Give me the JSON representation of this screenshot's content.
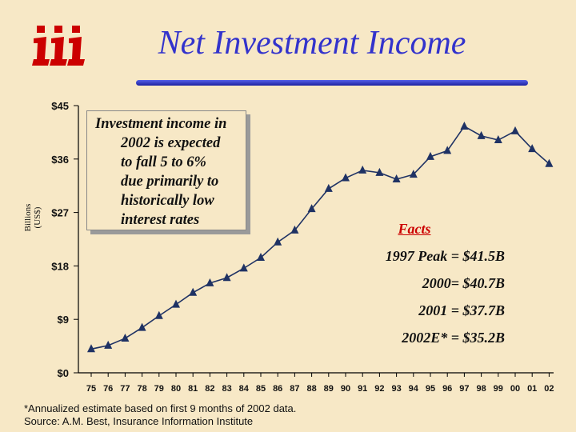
{
  "slide": {
    "title": "Net Investment Income",
    "callout_lines": [
      "Investment income in",
      "2002 is expected",
      "to fall 5 to 6%",
      "due primarily to",
      "historically low",
      "interest rates"
    ],
    "facts": {
      "heading": "Facts",
      "rows": [
        "1997 Peak = $41.5B",
        "2000= $40.7B",
        "2001 = $37.7B",
        "2002E* = $35.2B"
      ]
    },
    "footnote_lines": [
      "*Annualized estimate based on first 9 months of 2002 data.",
      "Source:  A.M. Best, Insurance Information Institute"
    ],
    "logo_color": "#cc0000"
  },
  "chart_data": {
    "type": "line",
    "title": "Net Investment Income",
    "ylabel_lines": [
      "Billions",
      "(US$)"
    ],
    "ylim": [
      0,
      45
    ],
    "yticks": [
      0,
      9,
      18,
      27,
      36,
      45
    ],
    "ytick_labels": [
      "$0",
      "$9",
      "$18",
      "$27",
      "$36",
      "$45"
    ],
    "categories": [
      "75",
      "76",
      "77",
      "78",
      "79",
      "80",
      "81",
      "82",
      "83",
      "84",
      "85",
      "86",
      "87",
      "88",
      "89",
      "90",
      "91",
      "92",
      "93",
      "94",
      "95",
      "96",
      "97",
      "98",
      "99",
      "00",
      "01",
      "02"
    ],
    "series": [
      {
        "values": [
          4.0,
          4.6,
          5.8,
          7.6,
          9.6,
          11.5,
          13.5,
          15.1,
          16.0,
          17.6,
          19.4,
          22.0,
          24.0,
          27.6,
          31.0,
          32.8,
          34.1,
          33.7,
          32.6,
          33.4,
          36.4,
          37.4,
          41.5,
          39.9,
          39.2,
          40.7,
          37.7,
          35.2
        ],
        "color": "#1f3264",
        "marker": "triangle"
      }
    ],
    "grid": false
  }
}
